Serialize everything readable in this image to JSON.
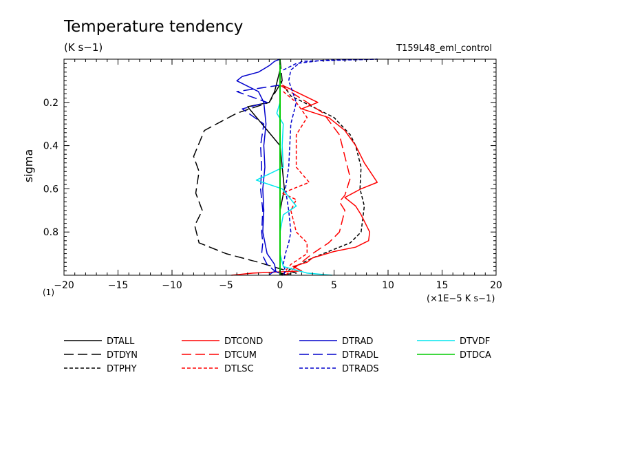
{
  "chart_data": {
    "type": "line",
    "title": "Temperature tendency",
    "subtitle": "(K s−1)",
    "run_label": "T159L48_eml_control",
    "ylabel": "sigma",
    "xunits": "(×1E−5 K s−1)",
    "xscale_label": "(1)",
    "xlim": [
      -20,
      20
    ],
    "ylim": [
      0.0,
      1.0
    ],
    "y_inverted": true,
    "xticks": [
      -20,
      -15,
      -10,
      -5,
      0,
      5,
      10,
      15,
      20
    ],
    "xtick_labels": [
      "−20",
      "−15",
      "−10",
      "−5",
      "0",
      "5",
      "10",
      "15",
      "20"
    ],
    "yticks": [
      0.2,
      0.4,
      0.6,
      0.8
    ],
    "ytick_labels": [
      "0.2",
      "0.4",
      "0.6",
      "0.8"
    ],
    "series": [
      {
        "name": "DTALL",
        "color": "#000000",
        "dash": "solid",
        "x": [
          0,
          0,
          -0.5,
          -1,
          -3,
          0,
          0.4,
          0,
          0,
          0,
          0,
          0,
          0,
          0,
          0.2,
          0.4,
          0
        ],
        "y": [
          0.0,
          0.05,
          0.15,
          0.2,
          0.22,
          0.4,
          0.6,
          0.7,
          0.85,
          0.95,
          0.97,
          0.98,
          0.99,
          0.995,
          1.0,
          0.995,
          0.99
        ]
      },
      {
        "name": "DTDYN",
        "color": "#000000",
        "dash": "long",
        "x": [
          0,
          0.2,
          -1,
          -4,
          -7,
          -8,
          -7.5,
          -7.8,
          -7.2,
          -7.9,
          -7.5,
          -5,
          -2,
          0,
          1.5,
          0
        ],
        "y": [
          0.0,
          0.1,
          0.2,
          0.25,
          0.33,
          0.45,
          0.52,
          0.62,
          0.7,
          0.77,
          0.85,
          0.9,
          0.94,
          0.97,
          0.99,
          1.0
        ]
      },
      {
        "name": "DTPHY",
        "color": "#000000",
        "dash": "short",
        "x": [
          0,
          1,
          3,
          5,
          6.5,
          7,
          7.5,
          7.4,
          7.8,
          7.5,
          6.5,
          5,
          3,
          1,
          0
        ],
        "y": [
          0.1,
          0.17,
          0.22,
          0.27,
          0.35,
          0.4,
          0.5,
          0.6,
          0.68,
          0.8,
          0.85,
          0.88,
          0.92,
          0.97,
          1.0
        ]
      },
      {
        "name": "DTCOND",
        "color": "#ff0000",
        "dash": "solid",
        "x": [
          0.2,
          3.5,
          2,
          4.5,
          6,
          7,
          7.8,
          9,
          7.5,
          6,
          7,
          7.5,
          8.3,
          8.2,
          7,
          5,
          3,
          2.5,
          1.2,
          2,
          -2.5,
          -4.5
        ],
        "y": [
          0.12,
          0.2,
          0.23,
          0.27,
          0.33,
          0.4,
          0.48,
          0.57,
          0.6,
          0.64,
          0.68,
          0.72,
          0.8,
          0.84,
          0.87,
          0.89,
          0.92,
          0.94,
          0.96,
          0.98,
          0.99,
          1.0
        ]
      },
      {
        "name": "DTCUM",
        "color": "#ff0000",
        "dash": "long",
        "x": [
          0,
          2.5,
          4,
          5.5,
          6,
          6.5,
          6,
          5.5,
          6,
          5.5,
          4.5,
          3,
          0.5
        ],
        "y": [
          0.12,
          0.2,
          0.25,
          0.35,
          0.45,
          0.55,
          0.63,
          0.66,
          0.7,
          0.8,
          0.85,
          0.9,
          1.0
        ]
      },
      {
        "name": "DTLSC",
        "color": "#ff0000",
        "dash": "short",
        "x": [
          0.3,
          1.5,
          2.5,
          1.5,
          1.5,
          2.7,
          0.2,
          1.5,
          1,
          1.5,
          2.5,
          2.5,
          1,
          0.5,
          0.3
        ],
        "y": [
          0.15,
          0.2,
          0.27,
          0.35,
          0.5,
          0.57,
          0.62,
          0.65,
          0.7,
          0.8,
          0.85,
          0.9,
          0.95,
          0.98,
          1.0
        ]
      },
      {
        "name": "DTRAD",
        "color": "#0000cc",
        "dash": "solid",
        "x": [
          0,
          -0.5,
          -1,
          -2,
          -3.5,
          -4,
          -2,
          -1.5,
          -1.3,
          -1.5,
          -1.4,
          -1.6,
          -1.5,
          -1.6,
          -1.2,
          -0.5,
          -0.4,
          -0.8,
          -1
        ],
        "y": [
          0.0,
          0.01,
          0.03,
          0.06,
          0.08,
          0.1,
          0.15,
          0.2,
          0.3,
          0.4,
          0.5,
          0.6,
          0.7,
          0.8,
          0.9,
          0.95,
          0.98,
          0.99,
          1.0
        ]
      },
      {
        "name": "DTRADL",
        "color": "#0000cc",
        "dash": "long",
        "x": [
          0,
          -4,
          -1.2,
          -3.5,
          -1.5,
          -1.8,
          -1.7,
          -1.8,
          -1.6,
          -1.7,
          -1.6,
          -1.7,
          -1.2,
          -0.5,
          0.3
        ],
        "y": [
          0.12,
          0.15,
          0.2,
          0.23,
          0.3,
          0.4,
          0.5,
          0.6,
          0.7,
          0.8,
          0.85,
          0.9,
          0.95,
          0.98,
          1.0
        ]
      },
      {
        "name": "DTRADS",
        "color": "#0000cc",
        "dash": "short",
        "x": [
          0.3,
          1.5,
          4,
          9,
          2,
          1,
          0.8,
          1.5,
          1,
          0.8,
          0.5,
          0.8,
          1,
          0.8,
          0.5,
          0.3,
          0.5,
          0.3
        ],
        "y": [
          0.05,
          0.02,
          0.005,
          0.0,
          0.01,
          0.05,
          0.1,
          0.2,
          0.3,
          0.5,
          0.6,
          0.7,
          0.8,
          0.85,
          0.9,
          0.95,
          0.98,
          1.0
        ]
      },
      {
        "name": "DTVDF",
        "color": "#00e5ee",
        "dash": "solid",
        "x": [
          0,
          -0.3,
          0.3,
          0.2,
          0.3,
          -2.2,
          0.2,
          1.5,
          0.3,
          0,
          0,
          0.3,
          2.5,
          4.8
        ],
        "y": [
          0.2,
          0.25,
          0.3,
          0.4,
          0.5,
          0.56,
          0.6,
          0.68,
          0.72,
          0.8,
          0.9,
          0.96,
          0.99,
          1.0
        ]
      },
      {
        "name": "DTDCA",
        "color": "#00cc00",
        "dash": "solid",
        "x": [
          0,
          0
        ],
        "y": [
          0.0,
          1.0
        ]
      }
    ]
  }
}
